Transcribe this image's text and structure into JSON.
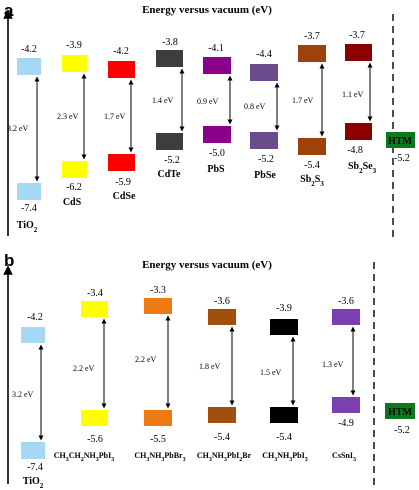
{
  "panel_a": {
    "label": "a",
    "title": "Energy versus vacuum (eV)",
    "materials": [
      {
        "name": "TiO2",
        "sub": "2",
        "base": "TiO",
        "cb": "-4.2",
        "vb": "-7.4",
        "gap": "3.2 eV",
        "color": "#a6d8f5"
      },
      {
        "name": "CdS",
        "cb": "-3.9",
        "vb": "-6.2",
        "gap": "2.3 eV",
        "color": "#ffff00"
      },
      {
        "name": "CdSe",
        "cb": "-4.2",
        "vb": "-5.9",
        "gap": "1.7 eV",
        "color": "#ff0000"
      },
      {
        "name": "CdTe",
        "cb": "-3.8",
        "vb": "-5.2",
        "gap": "1.4 eV",
        "color": "#3d3d3d"
      },
      {
        "name": "PbS",
        "cb": "-4.1",
        "vb": "-5.0",
        "gap": "0.9 eV",
        "color": "#8b008b"
      },
      {
        "name": "PbSe",
        "cb": "-4.4",
        "vb": "-5.2",
        "gap": "0.8 eV",
        "color": "#6a4c8c"
      },
      {
        "name": "Sb2S3",
        "cb": "-3.7",
        "vb": "-5.4",
        "gap": "1.7 eV",
        "color": "#a0400a"
      },
      {
        "name": "Sb2Se3",
        "cb": "-3.7",
        "vb": "-4.8",
        "gap": "1.1 eV",
        "color": "#8b0000"
      }
    ],
    "htm": {
      "label": "HTM",
      "value": "-5.2",
      "color": "#0b7a1e"
    }
  },
  "panel_b": {
    "label": "b",
    "title": "Energy versus vacuum (eV)",
    "materials": [
      {
        "name": "TiO2",
        "cb": "-4.2",
        "vb": "-7.4",
        "gap": "3.2 eV",
        "color": "#a6d8f5"
      },
      {
        "name": "CH3CH2NH3PbI3",
        "cb": "-3.4",
        "vb": "-5.6",
        "gap": "2.2 eV",
        "color": "#ffff00"
      },
      {
        "name": "CH3NH3PbBr3",
        "cb": "-3.3",
        "vb": "-5.5",
        "gap": "2.2 eV",
        "color": "#ee7a11"
      },
      {
        "name": "CH3NH3PbI2Br",
        "cb": "-3.6",
        "vb": "-5.4",
        "gap": "1.8 eV",
        "color": "#a0500a"
      },
      {
        "name": "CH3NH3PbI3",
        "cb": "-3.9",
        "vb": "-5.4",
        "gap": "1.5 eV",
        "color": "#000000"
      },
      {
        "name": "CsSnI3",
        "cb": "-3.6",
        "vb": "-4.9",
        "gap": "1.3 eV",
        "color": "#7b3fb0"
      }
    ],
    "htm": {
      "label": "HTM",
      "value": "-5.2",
      "color": "#0b7a1e"
    }
  }
}
